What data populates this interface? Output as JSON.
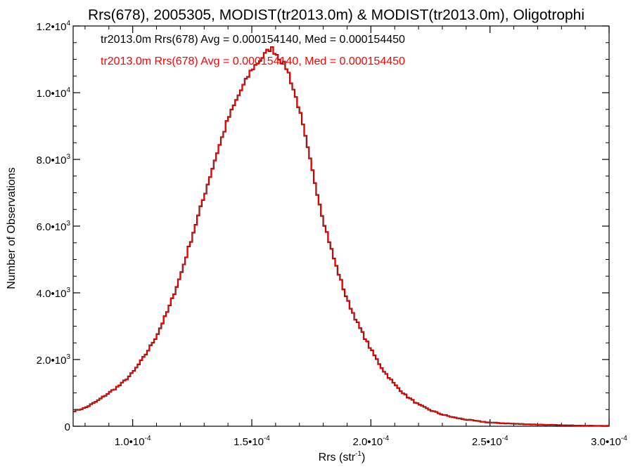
{
  "colors": {
    "series1": "#000000",
    "series2": "#ff0000",
    "axes": "#000000"
  },
  "chart_data": {
    "type": "histogram-step",
    "title": "Rrs(678), 2005305, MODIST(tr2013.0m) & MODIST(tr2013.0m), Oligotrophi",
    "xlabel_base": "Rrs (str",
    "xlabel_sup": "-1",
    "xlabel_end": ")",
    "ylabel": "Number of Observations",
    "xlim": [
      7.5e-05,
      0.0003
    ],
    "ylim": [
      0,
      12000
    ],
    "x_ticks": [
      {
        "value": 0.0001,
        "mantissa": "1.0•10",
        "exp": "-4"
      },
      {
        "value": 0.00015,
        "mantissa": "1.5•10",
        "exp": "-4"
      },
      {
        "value": 0.0002,
        "mantissa": "2.0•10",
        "exp": "-4"
      },
      {
        "value": 0.00025,
        "mantissa": "2.5•10",
        "exp": "-4"
      },
      {
        "value": 0.0003,
        "mantissa": "3.0•10",
        "exp": "-4"
      }
    ],
    "y_ticks": [
      {
        "value": 0,
        "mantissa": "0",
        "exp": ""
      },
      {
        "value": 2000,
        "mantissa": "2.0•10",
        "exp": "3"
      },
      {
        "value": 4000,
        "mantissa": "4.0•10",
        "exp": "3"
      },
      {
        "value": 6000,
        "mantissa": "6.0•10",
        "exp": "3"
      },
      {
        "value": 8000,
        "mantissa": "8.0•10",
        "exp": "3"
      },
      {
        "value": 10000,
        "mantissa": "1.0•10",
        "exp": "4"
      },
      {
        "value": 12000,
        "mantissa": "1.2•10",
        "exp": "4"
      }
    ],
    "grid": false,
    "legend_position": "top-left",
    "series": [
      {
        "label": "tr2013.0m Rrs(678) Avg = 0.000154140, Med = 0.000154450",
        "color": "#000000",
        "bin_width": 1e-06
      },
      {
        "label": "tr2013.0m Rrs(678) Avg = 0.000154140, Med = 0.000154450",
        "color": "#ff0000",
        "bin_width": 1e-06
      }
    ],
    "x": [
      7.5e-05,
      8e-05,
      8.5e-05,
      9e-05,
      9.5e-05,
      0.0001,
      0.000105,
      0.00011,
      0.000115,
      0.00012,
      0.000125,
      0.00013,
      0.000135,
      0.00014,
      0.000145,
      0.00015,
      0.000155,
      0.000158,
      0.00016,
      0.000165,
      0.00017,
      0.000175,
      0.00018,
      0.000185,
      0.00019,
      0.000195,
      0.0002,
      0.000205,
      0.00021,
      0.000215,
      0.00022,
      0.000225,
      0.00023,
      0.000235,
      0.00024,
      0.000245,
      0.00025,
      0.00026,
      0.00027,
      0.00028,
      0.00029,
      0.0003
    ],
    "y": [
      450,
      550,
      750,
      1000,
      1250,
      1600,
      2100,
      2700,
      3500,
      4500,
      5700,
      6900,
      8100,
      9200,
      10000,
      10700,
      11100,
      11350,
      11200,
      10700,
      9500,
      7800,
      6200,
      4900,
      3800,
      3000,
      2300,
      1700,
      1250,
      900,
      650,
      480,
      350,
      260,
      200,
      150,
      110,
      75,
      50,
      30,
      18,
      10
    ]
  }
}
